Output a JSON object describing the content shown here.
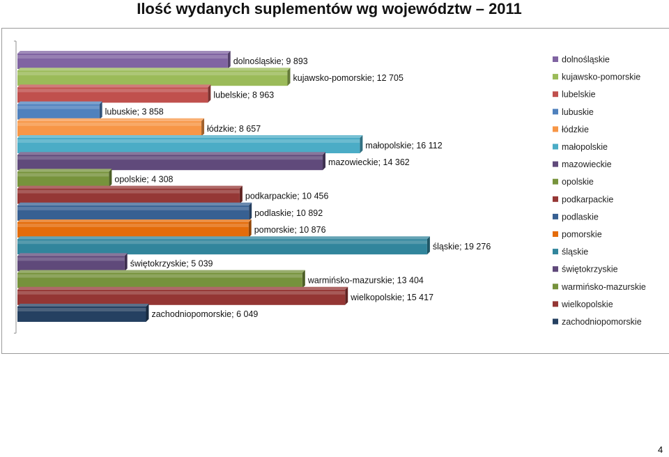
{
  "title": "Ilość wydanych suplementów wg województw – 2011",
  "page_number": "4",
  "chart_data": {
    "type": "bar",
    "orientation": "horizontal",
    "title": "",
    "xlabel": "",
    "ylabel": "",
    "xlim": [
      0,
      20000
    ],
    "grid": false,
    "legend_position": "right",
    "categories": [
      "dolnośląskie",
      "kujawsko-pomorskie",
      "lubelskie",
      "lubuskie",
      "łódzkie",
      "małopolskie",
      "mazowieckie",
      "opolskie",
      "podkarpackie",
      "podlaskie",
      "pomorskie",
      "śląskie",
      "świętokrzyskie",
      "warmińsko-mazurskie",
      "wielkopolskie",
      "zachodniopomorskie"
    ],
    "values": [
      9893,
      12705,
      8963,
      3858,
      8657,
      16112,
      14362,
      4308,
      10456,
      10892,
      10876,
      19276,
      5039,
      13404,
      15417,
      6049
    ],
    "data_labels": [
      "dolnośląskie; 9 893",
      "kujawsko-pomorskie; 12 705",
      "lubelskie; 8 963",
      "lubuskie; 3 858",
      "łódzkie; 8 657",
      "małopolskie; 16 112",
      "mazowieckie; 14 362",
      "opolskie; 4 308",
      "podkarpackie; 10 456",
      "podlaskie; 10 892",
      "pomorskie; 10 876",
      "śląskie; 19 276",
      "świętokrzyskie; 5 039",
      "warmińsko-mazurskie; 13 404",
      "wielkopolskie; 15 417",
      "zachodniopomorskie; 6 049"
    ],
    "colors": [
      "#8064A2",
      "#9BBB59",
      "#C0504D",
      "#4F81BD",
      "#F79646",
      "#4BACC6",
      "#604A7B",
      "#77933C",
      "#953735",
      "#376092",
      "#E46C0A",
      "#31859C",
      "#5F497A",
      "#76923C",
      "#943634",
      "#254061"
    ]
  }
}
